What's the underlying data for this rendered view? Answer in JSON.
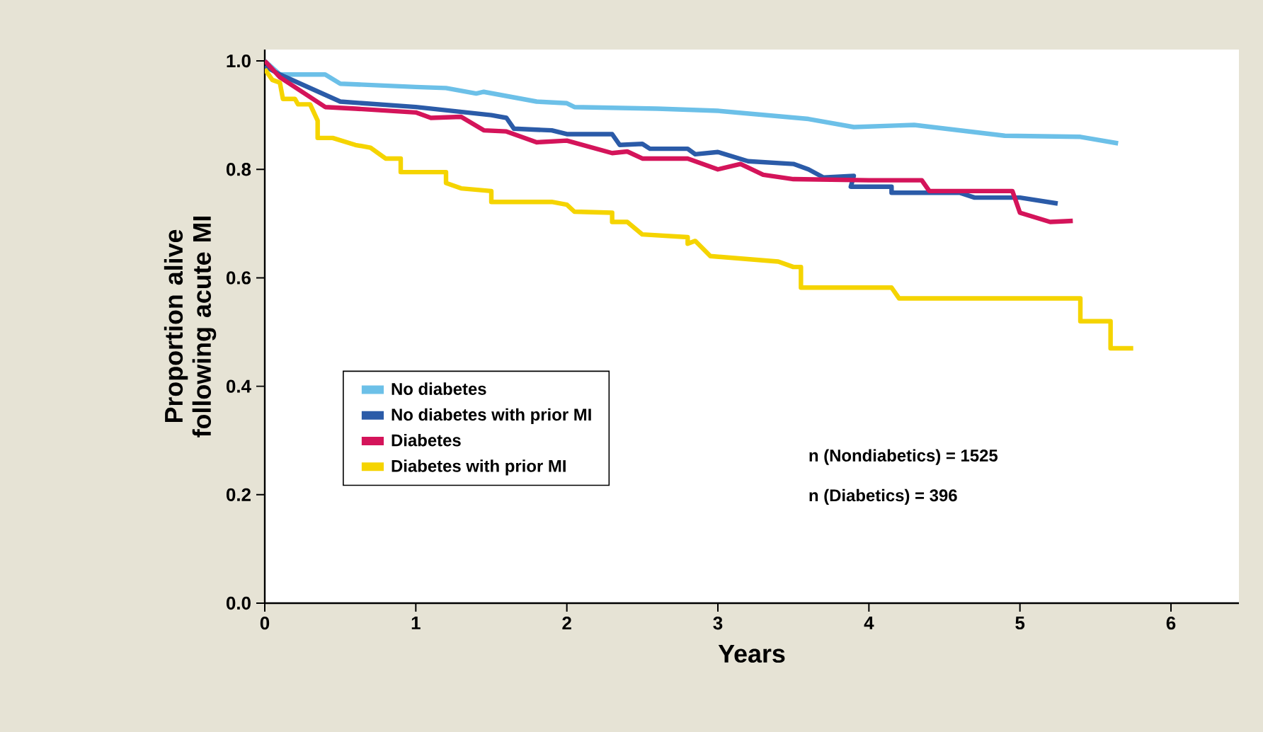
{
  "chart_data": {
    "type": "line",
    "xlabel": "Years",
    "ylabel": "Proportion alive following acute MI",
    "xlim": [
      0,
      6.45
    ],
    "ylim": [
      0,
      1.021
    ],
    "xticks": [
      0,
      1,
      2,
      3,
      4,
      5,
      6
    ],
    "yticks": [
      {
        "value": 0,
        "label": "0.0"
      },
      0.2,
      0.4,
      0.6,
      0.8,
      {
        "value": 1,
        "label": "1.0"
      }
    ],
    "legend": "bottom left",
    "grid": false,
    "marker": "none",
    "line_style": "solid",
    "annotations": [
      "n (Nondiabetics) = 1525",
      "n (Diabetics) = 396"
    ],
    "series": [
      {
        "name": "No diabetes",
        "color": "#6cc0e8",
        "x": [
          0,
          0.1,
          0.4,
          0.5,
          1.0,
          1.2,
          1.4,
          1.45,
          1.8,
          2.0,
          2.05,
          2.6,
          3.0,
          3.6,
          3.9,
          4.3,
          4.9,
          5.4,
          5.65
        ],
        "values": [
          1.0,
          0.975,
          0.975,
          0.958,
          0.952,
          0.95,
          0.94,
          0.943,
          0.925,
          0.922,
          0.915,
          0.912,
          0.908,
          0.893,
          0.878,
          0.882,
          0.862,
          0.86,
          0.848
        ]
      },
      {
        "name": "No diabetes with prior MI",
        "color": "#2b5ba8",
        "x": [
          0,
          0.1,
          0.5,
          1.0,
          1.5,
          1.6,
          1.65,
          1.9,
          2.0,
          2.3,
          2.35,
          2.5,
          2.55,
          2.8,
          2.85,
          3.0,
          3.2,
          3.5,
          3.6,
          3.7,
          3.9,
          3.88,
          4.15,
          4.15,
          4.6,
          4.7,
          5.0,
          5.25
        ],
        "values": [
          0.99,
          0.975,
          0.925,
          0.915,
          0.9,
          0.895,
          0.875,
          0.872,
          0.865,
          0.865,
          0.845,
          0.847,
          0.838,
          0.838,
          0.828,
          0.832,
          0.815,
          0.81,
          0.8,
          0.785,
          0.788,
          0.768,
          0.768,
          0.757,
          0.757,
          0.748,
          0.748,
          0.737
        ]
      },
      {
        "name": "Diabetes",
        "color": "#d4145a",
        "x": [
          0,
          0.1,
          0.4,
          0.6,
          1.0,
          1.1,
          1.3,
          1.45,
          1.6,
          1.8,
          2.0,
          2.3,
          2.4,
          2.5,
          2.8,
          3.0,
          3.15,
          3.3,
          3.5,
          4.0,
          4.35,
          4.4,
          4.95,
          5.0,
          5.2,
          5.35
        ],
        "values": [
          1.0,
          0.97,
          0.915,
          0.912,
          0.905,
          0.895,
          0.897,
          0.872,
          0.87,
          0.85,
          0.853,
          0.83,
          0.833,
          0.82,
          0.82,
          0.8,
          0.81,
          0.79,
          0.782,
          0.78,
          0.78,
          0.76,
          0.76,
          0.72,
          0.703,
          0.705
        ]
      },
      {
        "name": "Diabetes with prior MI",
        "color": "#f5d400",
        "x": [
          0,
          0.05,
          0.1,
          0.12,
          0.2,
          0.22,
          0.3,
          0.35,
          0.35,
          0.45,
          0.6,
          0.7,
          0.8,
          0.9,
          0.9,
          1.2,
          1.2,
          1.3,
          1.5,
          1.5,
          1.9,
          2.0,
          2.05,
          2.3,
          2.3,
          2.4,
          2.5,
          2.8,
          2.8,
          2.85,
          2.95,
          3.4,
          3.5,
          3.55,
          3.55,
          4.15,
          4.2,
          5.4,
          5.4,
          5.6,
          5.6,
          5.75
        ],
        "values": [
          0.985,
          0.965,
          0.96,
          0.93,
          0.93,
          0.92,
          0.92,
          0.89,
          0.858,
          0.858,
          0.845,
          0.84,
          0.82,
          0.82,
          0.795,
          0.795,
          0.775,
          0.765,
          0.76,
          0.74,
          0.74,
          0.735,
          0.722,
          0.72,
          0.703,
          0.703,
          0.68,
          0.675,
          0.663,
          0.668,
          0.64,
          0.63,
          0.62,
          0.62,
          0.582,
          0.582,
          0.562,
          0.562,
          0.52,
          0.52,
          0.47,
          0.47
        ]
      }
    ]
  }
}
